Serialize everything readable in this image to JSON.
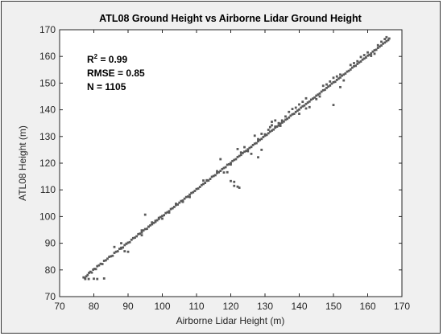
{
  "chart_data": {
    "type": "scatter",
    "title": "ATL08 Ground Height vs Airborne Lidar Ground Height",
    "xlabel": "Airborne Lidar Height (m)",
    "ylabel": "ATL08 Height (m)",
    "xlim": [
      70,
      170
    ],
    "ylim": [
      70,
      170
    ],
    "xticks": [
      "70",
      "80",
      "90",
      "100",
      "110",
      "120",
      "130",
      "140",
      "150",
      "160",
      "170"
    ],
    "yticks": [
      "70",
      "80",
      "90",
      "100",
      "110",
      "120",
      "130",
      "140",
      "150",
      "160",
      "170"
    ],
    "grid": false,
    "marker_color": "#595959",
    "stats": [
      {
        "label": "R",
        "sup": "2",
        "value": "= 0.99"
      },
      {
        "label": "RMSE",
        "sup": "",
        "value": "= 0.85"
      },
      {
        "label": "N",
        "sup": "",
        "value": "= 1105"
      }
    ],
    "points": [
      [
        77,
        77.2
      ],
      [
        77.4,
        77.0
      ],
      [
        77.8,
        77.6
      ],
      [
        78.2,
        78.1
      ],
      [
        78.6,
        78.9
      ],
      [
        79.0,
        79.3
      ],
      [
        79.4,
        79.0
      ],
      [
        79.8,
        80.1
      ],
      [
        80.2,
        80.4
      ],
      [
        80.6,
        80.3
      ],
      [
        81.0,
        81.4
      ],
      [
        81.5,
        81.7
      ],
      [
        82.0,
        82.3
      ],
      [
        82.5,
        82.2
      ],
      [
        83.0,
        83.4
      ],
      [
        83.5,
        83.6
      ],
      [
        84.0,
        84.2
      ],
      [
        84.5,
        84.9
      ],
      [
        85.0,
        85.1
      ],
      [
        85.5,
        85.3
      ],
      [
        86.0,
        86.4
      ],
      [
        86.5,
        86.8
      ],
      [
        87.0,
        87.0
      ],
      [
        87.5,
        87.9
      ],
      [
        88.0,
        88.3
      ],
      [
        88.5,
        88.4
      ],
      [
        89.0,
        89.3
      ],
      [
        89.5,
        89.8
      ],
      [
        90.0,
        90.2
      ],
      [
        90.5,
        90.4
      ],
      [
        91.0,
        91.3
      ],
      [
        91.5,
        91.9
      ],
      [
        92.0,
        92.1
      ],
      [
        92.5,
        92.6
      ],
      [
        93.0,
        93.4
      ],
      [
        93.5,
        93.6
      ],
      [
        94.0,
        94.0
      ],
      [
        94.5,
        94.8
      ],
      [
        95.0,
        95.3
      ],
      [
        95.5,
        95.4
      ],
      [
        96.0,
        96.2
      ],
      [
        96.5,
        96.7
      ],
      [
        97.0,
        97.1
      ],
      [
        97.5,
        97.6
      ],
      [
        98.0,
        98.4
      ],
      [
        98.5,
        98.6
      ],
      [
        99.0,
        99.1
      ],
      [
        99.5,
        99.8
      ],
      [
        100.0,
        100.2
      ],
      [
        100.5,
        100.5
      ],
      [
        101.0,
        101.3
      ],
      [
        101.5,
        101.6
      ],
      [
        102.0,
        102.0
      ],
      [
        102.5,
        102.8
      ],
      [
        103.0,
        103.1
      ],
      [
        103.5,
        103.6
      ],
      [
        104.0,
        104.3
      ],
      [
        104.5,
        104.5
      ],
      [
        105.0,
        105.2
      ],
      [
        105.5,
        105.8
      ],
      [
        106.0,
        106.0
      ],
      [
        106.5,
        106.7
      ],
      [
        107.0,
        107.3
      ],
      [
        107.5,
        107.5
      ],
      [
        108.0,
        108.2
      ],
      [
        108.5,
        108.8
      ],
      [
        109.0,
        109.1
      ],
      [
        109.5,
        109.6
      ],
      [
        110.0,
        110.3
      ],
      [
        110.5,
        110.5
      ],
      [
        111.0,
        111.1
      ],
      [
        111.5,
        111.8
      ],
      [
        112.0,
        112.2
      ],
      [
        112.5,
        112.6
      ],
      [
        113.0,
        113.4
      ],
      [
        113.5,
        113.5
      ],
      [
        114.0,
        114.1
      ],
      [
        114.5,
        114.9
      ],
      [
        115.0,
        115.2
      ],
      [
        115.5,
        115.5
      ],
      [
        116.0,
        116.3
      ],
      [
        116.5,
        116.6
      ],
      [
        117.0,
        117.1
      ],
      [
        117.5,
        117.8
      ],
      [
        118.0,
        118.2
      ],
      [
        118.5,
        118.5
      ],
      [
        119.0,
        119.4
      ],
      [
        119.5,
        119.6
      ],
      [
        120.0,
        120.1
      ],
      [
        120.5,
        120.8
      ],
      [
        121.0,
        121.2
      ],
      [
        121.5,
        121.5
      ],
      [
        122.0,
        122.3
      ],
      [
        122.5,
        122.7
      ],
      [
        123.0,
        123.1
      ],
      [
        123.5,
        123.8
      ],
      [
        124.0,
        124.3
      ],
      [
        124.5,
        124.6
      ],
      [
        125.0,
        125.2
      ],
      [
        125.5,
        125.7
      ],
      [
        126.0,
        126.1
      ],
      [
        126.5,
        126.8
      ],
      [
        127.0,
        127.3
      ],
      [
        127.5,
        127.5
      ],
      [
        128.0,
        128.2
      ],
      [
        128.5,
        128.7
      ],
      [
        129.0,
        129.1
      ],
      [
        129.5,
        129.8
      ],
      [
        130.0,
        130.3
      ],
      [
        130.5,
        130.6
      ],
      [
        131.0,
        131.2
      ],
      [
        131.5,
        131.8
      ],
      [
        132.0,
        132.2
      ],
      [
        132.5,
        132.6
      ],
      [
        133.0,
        133.3
      ],
      [
        133.5,
        133.7
      ],
      [
        134.0,
        134.1
      ],
      [
        134.5,
        134.8
      ],
      [
        135.0,
        135.2
      ],
      [
        135.5,
        135.6
      ],
      [
        136.0,
        136.3
      ],
      [
        136.5,
        136.6
      ],
      [
        137.0,
        137.1
      ],
      [
        137.5,
        137.8
      ],
      [
        138.0,
        138.3
      ],
      [
        138.5,
        138.5
      ],
      [
        139.0,
        139.2
      ],
      [
        139.5,
        139.7
      ],
      [
        140.0,
        140.1
      ],
      [
        140.5,
        140.8
      ],
      [
        141.0,
        141.3
      ],
      [
        141.5,
        141.6
      ],
      [
        142.0,
        142.2
      ],
      [
        142.5,
        142.7
      ],
      [
        143.0,
        143.1
      ],
      [
        143.5,
        143.8
      ],
      [
        144.0,
        144.2
      ],
      [
        144.5,
        144.6
      ],
      [
        145.0,
        145.3
      ],
      [
        145.5,
        145.7
      ],
      [
        146.0,
        146.1
      ],
      [
        146.5,
        146.8
      ],
      [
        147.0,
        147.3
      ],
      [
        147.5,
        147.5
      ],
      [
        148.0,
        148.2
      ],
      [
        148.5,
        148.7
      ],
      [
        149.0,
        149.1
      ],
      [
        149.5,
        149.8
      ],
      [
        150.0,
        150.3
      ],
      [
        150.5,
        150.5
      ],
      [
        151.0,
        151.2
      ],
      [
        151.5,
        151.7
      ],
      [
        152.0,
        152.1
      ],
      [
        152.5,
        152.8
      ],
      [
        153.0,
        153.2
      ],
      [
        153.5,
        153.6
      ],
      [
        154.0,
        154.3
      ],
      [
        154.5,
        154.6
      ],
      [
        155.0,
        155.1
      ],
      [
        155.5,
        155.8
      ],
      [
        156.0,
        156.3
      ],
      [
        156.5,
        156.5
      ],
      [
        157.0,
        157.2
      ],
      [
        157.5,
        157.7
      ],
      [
        158.0,
        158.1
      ],
      [
        158.5,
        158.8
      ],
      [
        159.0,
        159.2
      ],
      [
        159.5,
        159.6
      ],
      [
        160.0,
        160.3
      ],
      [
        160.5,
        160.6
      ],
      [
        161.0,
        161.1
      ],
      [
        161.5,
        161.8
      ],
      [
        162.0,
        162.3
      ],
      [
        162.5,
        162.5
      ],
      [
        163.0,
        163.2
      ],
      [
        163.5,
        163.7
      ],
      [
        164.0,
        164.1
      ],
      [
        164.5,
        164.8
      ],
      [
        165.0,
        165.2
      ],
      [
        165.5,
        165.7
      ],
      [
        166.0,
        166.1
      ],
      [
        166.3,
        166.7
      ],
      [
        77.5,
        76.6
      ],
      [
        78.5,
        76.6
      ],
      [
        80.0,
        76.7
      ],
      [
        81.0,
        76.6
      ],
      [
        83.0,
        76.8
      ],
      [
        86.0,
        88.6
      ],
      [
        88.0,
        88.0
      ],
      [
        89.0,
        87.0
      ],
      [
        90.0,
        86.8
      ],
      [
        88.0,
        90.0
      ],
      [
        89.5,
        89.8
      ],
      [
        95.0,
        100.7
      ],
      [
        94.0,
        94.8
      ],
      [
        100.0,
        99.2
      ],
      [
        108.0,
        107.3
      ],
      [
        112.0,
        113.5
      ],
      [
        113.0,
        113.6
      ],
      [
        116.0,
        117.0
      ],
      [
        117.0,
        121.5
      ],
      [
        118.0,
        116.5
      ],
      [
        119.0,
        116.6
      ],
      [
        120.0,
        119.5
      ],
      [
        120.0,
        113.3
      ],
      [
        121.0,
        111.5
      ],
      [
        122.0,
        111.2
      ],
      [
        122.5,
        110.8
      ],
      [
        121.0,
        113.0
      ],
      [
        122.0,
        125.3
      ],
      [
        123.0,
        124.0
      ],
      [
        124.0,
        126.0
      ],
      [
        125.0,
        124.5
      ],
      [
        127.0,
        130.3
      ],
      [
        128.0,
        129.0
      ],
      [
        129.0,
        131.0
      ],
      [
        130.0,
        130.8
      ],
      [
        131.0,
        132.5
      ],
      [
        131.5,
        133.5
      ],
      [
        132.0,
        134.2
      ],
      [
        133.0,
        133.7
      ],
      [
        132.0,
        135.5
      ],
      [
        133.0,
        136.0
      ],
      [
        134.0,
        135.0
      ],
      [
        134.5,
        134.0
      ],
      [
        135.0,
        136.0
      ],
      [
        136.0,
        137.5
      ],
      [
        128.0,
        122.2
      ],
      [
        129.0,
        125.0
      ],
      [
        126.0,
        123.5
      ],
      [
        137.0,
        139.2
      ],
      [
        138.0,
        140.3
      ],
      [
        139.0,
        140.8
      ],
      [
        140.0,
        142.0
      ],
      [
        141.0,
        143.0
      ],
      [
        142.0,
        144.3
      ],
      [
        140.0,
        138.5
      ],
      [
        142.0,
        140.5
      ],
      [
        143.0,
        141.0
      ],
      [
        145.0,
        144.0
      ],
      [
        146.0,
        145.0
      ],
      [
        147.0,
        149.0
      ],
      [
        148.0,
        149.5
      ],
      [
        149.0,
        150.6
      ],
      [
        150.0,
        152.0
      ],
      [
        151.0,
        152.5
      ],
      [
        152.0,
        153.2
      ],
      [
        150.0,
        141.8
      ],
      [
        152.0,
        148.5
      ],
      [
        153.0,
        151.0
      ],
      [
        155.0,
        156.8
      ],
      [
        156.0,
        157.5
      ],
      [
        157.0,
        158.2
      ],
      [
        158.0,
        159.8
      ],
      [
        159.0,
        160.5
      ],
      [
        160.0,
        161.5
      ],
      [
        161.0,
        160.2
      ],
      [
        162.0,
        161.0
      ],
      [
        163.0,
        164.2
      ],
      [
        164.0,
        165.5
      ],
      [
        165.0,
        166.5
      ],
      [
        165.5,
        167.2
      ],
      [
        94.0,
        93.0
      ],
      [
        96.0,
        96.2
      ],
      [
        97.0,
        97.8
      ],
      [
        98.0,
        98.0
      ],
      [
        99.0,
        99.5
      ],
      [
        102.0,
        101.5
      ],
      [
        104.0,
        104.8
      ],
      [
        106.0,
        105.5
      ]
    ]
  }
}
